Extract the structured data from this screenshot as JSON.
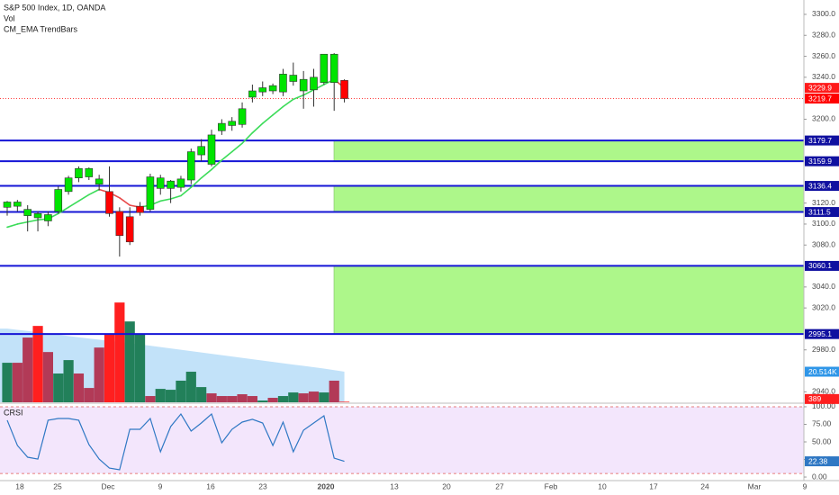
{
  "chart_data": {
    "type": "candlestick",
    "title": "S&P 500 Index, 1D, OANDA",
    "legend": [
      "Vol",
      "CM_EMA TrendBars"
    ],
    "xtick_labels": [
      "18",
      "25",
      "Dec",
      "9",
      "16",
      "23",
      "2020",
      "13",
      "20",
      "27",
      "Feb",
      "10",
      "17",
      "24",
      "Mar",
      "9"
    ],
    "ylim": [
      2930,
      3313.7
    ],
    "yticks": [
      {
        "value": 3300,
        "label": "3300.0"
      },
      {
        "value": 3280,
        "label": "3280.0"
      },
      {
        "value": 3260,
        "label": "3260.0"
      },
      {
        "value": 3240,
        "label": "3240.0"
      },
      {
        "value": 3200,
        "label": "3200.0"
      },
      {
        "value": 3120,
        "label": "3120.0"
      },
      {
        "value": 3100,
        "label": "3100.0"
      },
      {
        "value": 3080,
        "label": "3080.0"
      },
      {
        "value": 3040,
        "label": "3040.0"
      },
      {
        "value": 3020,
        "label": "3020.0"
      },
      {
        "value": 2980,
        "label": "2980.0"
      },
      {
        "value": 2940,
        "label": "2940.0"
      }
    ],
    "grid": false,
    "open": [
      3116,
      3117,
      3108,
      3106,
      3103,
      3112,
      3131,
      3144,
      3145,
      3138,
      3131,
      3112,
      3107,
      3117,
      3114,
      3134,
      3134,
      3135,
      3142,
      3166,
      3157,
      3189,
      3194,
      3195,
      3221,
      3226,
      3227,
      3226,
      3236,
      3227,
      3228,
      3235,
      3235,
      3237
    ],
    "high": [
      3122,
      3123,
      3118,
      3112,
      3112,
      3136,
      3146,
      3155,
      3154,
      3147,
      3155,
      3116,
      3116,
      3121,
      3148,
      3147,
      3142,
      3146,
      3172,
      3181,
      3190,
      3200,
      3202,
      3216,
      3233,
      3236,
      3234,
      3248,
      3254,
      3246,
      3248,
      3262,
      3263,
      3238
    ],
    "low": [
      3108,
      3112,
      3093,
      3093,
      3098,
      3110,
      3128,
      3140,
      3142,
      3132,
      3107,
      3069,
      3080,
      3108,
      3112,
      3128,
      3120,
      3131,
      3138,
      3160,
      3155,
      3185,
      3189,
      3192,
      3216,
      3222,
      3224,
      3222,
      3232,
      3210,
      3212,
      3233,
      3208,
      3216
    ],
    "close": [
      3121,
      3121,
      3114,
      3110,
      3109,
      3133,
      3144,
      3153,
      3153,
      3143,
      3110,
      3089,
      3083,
      3111,
      3145,
      3144,
      3141,
      3143,
      3169,
      3174,
      3185,
      3196,
      3198,
      3210,
      3227,
      3230,
      3232,
      3243,
      3242,
      3238,
      3240,
      3262,
      3262,
      3219.7
    ],
    "candle_colors": [
      "#00e400",
      "#00e400",
      "#00e400",
      "#00e400",
      "#00e400",
      "#00e400",
      "#00e400",
      "#00e400",
      "#00e400",
      "#00e400",
      "#ff0000",
      "#ff0000",
      "#ff0000",
      "#ff0000",
      "#00e400",
      "#00e400",
      "#00e400",
      "#00e400",
      "#00e400",
      "#00e400",
      "#00e400",
      "#00e400",
      "#00e400",
      "#00e400",
      "#00e400",
      "#00e400",
      "#00e400",
      "#00e400",
      "#00e400",
      "#00e400",
      "#00e400",
      "#00e400",
      "#00e400",
      "#ff0000"
    ],
    "ema": [
      3097,
      3100,
      3102,
      3104,
      3105,
      3110,
      3116,
      3122,
      3128,
      3133,
      3130,
      3125,
      3118,
      3116,
      3118,
      3122,
      3124,
      3127,
      3135,
      3144,
      3152,
      3161,
      3169,
      3177,
      3187,
      3196,
      3204,
      3212,
      3219,
      3223,
      3228,
      3233,
      3238,
      3229.9
    ],
    "ema_colors": [
      "#3ddc5a",
      "#3ddc5a",
      "#3ddc5a",
      "#3ddc5a",
      "#3ddc5a",
      "#3ddc5a",
      "#3ddc5a",
      "#3ddc5a",
      "#3ddc5a",
      "#3ddc5a",
      "#e84a4a",
      "#e84a4a",
      "#e84a4a",
      "#e84a4a",
      "#3ddc5a",
      "#3ddc5a",
      "#3ddc5a",
      "#3ddc5a",
      "#3ddc5a",
      "#3ddc5a",
      "#3ddc5a",
      "#3ddc5a",
      "#3ddc5a",
      "#3ddc5a",
      "#3ddc5a",
      "#3ddc5a",
      "#3ddc5a",
      "#3ddc5a",
      "#3ddc5a",
      "#3ddc5a",
      "#3ddc5a",
      "#3ddc5a",
      "#3ddc5a",
      "#e84a4a"
    ],
    "last_price_color": "#ff0000",
    "levels": [
      3179.7,
      3159.9,
      3136.4,
      3111.5,
      3060.1,
      2995.1
    ],
    "level_color": "#1515d6",
    "zones": [
      [
        3179.7,
        3159.9
      ],
      [
        3136.4,
        3111.5
      ],
      [
        3060.1,
        2995.1
      ]
    ],
    "zone_color": "#adf78a",
    "volume": {
      "ylim": [
        0,
        269700
      ],
      "values": [
        26500,
        26500,
        43400,
        51200,
        33700,
        19300,
        28300,
        19300,
        9600,
        36700,
        45800,
        66900,
        54200,
        45800,
        4200,
        9000,
        8400,
        14500,
        20500,
        10200,
        6000,
        4200,
        4200,
        5400,
        4200,
        1200,
        3000,
        4200,
        6600,
        6000,
        7200,
        6600,
        14500,
        389
      ],
      "colors": [
        "#22805a",
        "#b23a57",
        "#b23a57",
        "#ff1f1f",
        "#b23a57",
        "#22805a",
        "#22805a",
        "#b23a57",
        "#b23a57",
        "#b23a57",
        "#ff1f1f",
        "#ff1f1f",
        "#22805a",
        "#22805a",
        "#b23a57",
        "#22805a",
        "#22805a",
        "#22805a",
        "#22805a",
        "#22805a",
        "#b23a57",
        "#b23a57",
        "#b23a57",
        "#b23a57",
        "#b23a57",
        "#22805a",
        "#b23a57",
        "#22805a",
        "#22805a",
        "#b23a57",
        "#b23a57",
        "#22805a",
        "#b23a57",
        "#ff1f1f"
      ],
      "ma_values": [
        49400,
        48600,
        47800,
        47000,
        46200,
        45300,
        44400,
        43600,
        42800,
        42000,
        41200,
        40400,
        39600,
        38800,
        37900,
        37000,
        36100,
        35200,
        34300,
        33400,
        32500,
        31600,
        30700,
        29800,
        28900,
        28000,
        27100,
        26200,
        25300,
        24400,
        23500,
        22600,
        21600,
        20514
      ],
      "ma_last_label": "20.514K",
      "ma_color": "#b7ddf8"
    },
    "crsi": {
      "name": "CRSI",
      "ylim": [
        -3.8,
        103.8
      ],
      "yticks": [
        {
          "value": 100,
          "label": "100.00"
        },
        {
          "value": 75,
          "label": "75.00"
        },
        {
          "value": 50,
          "label": "50.00"
        },
        {
          "value": 25,
          "label": "25.00"
        },
        {
          "value": 0,
          "label": "0.00"
        }
      ],
      "bands": [
        5,
        100
      ],
      "color": "#2f78c4",
      "values": [
        80.8,
        44.9,
        28.2,
        25.6,
        80.8,
        83.3,
        83.3,
        80.8,
        46.2,
        25.6,
        12.8,
        10.3,
        67.9,
        67.9,
        83.3,
        35.9,
        71.8,
        89.7,
        65.4,
        76.9,
        89.7,
        48.7,
        67.9,
        78.2,
        82.1,
        76.9,
        44.9,
        78.2,
        35.9,
        66.7,
        76.9,
        87.2,
        26.9,
        22.38
      ]
    }
  }
}
